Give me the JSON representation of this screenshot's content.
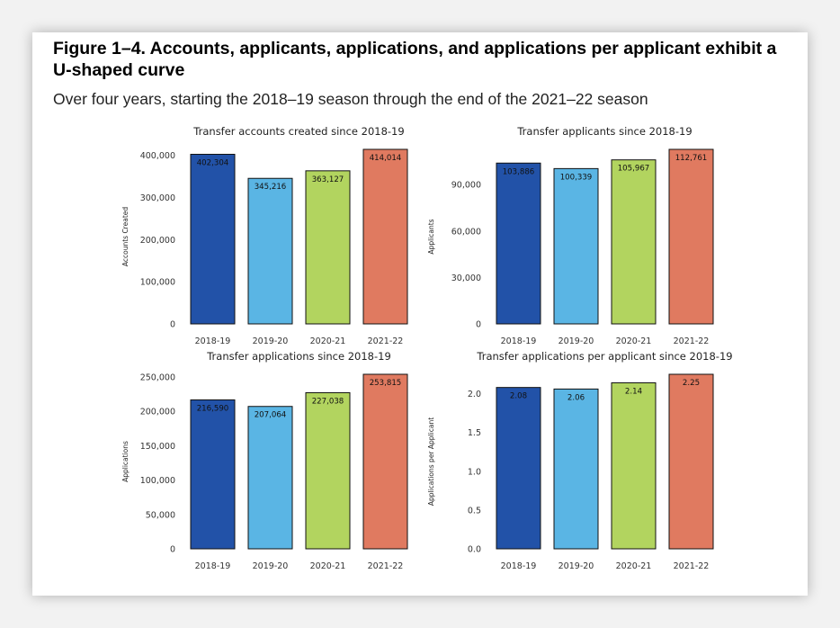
{
  "figure": {
    "title": "Figure 1–4. Accounts, applicants, applications, and applications per applicant exhibit a U-shaped curve",
    "subtitle": "Over four years, starting the 2018–19 season through the end of the 2021–22 season"
  },
  "colors": {
    "bars": [
      "#2252a8",
      "#5ab5e4",
      "#b2d45f",
      "#e07a60"
    ],
    "edge": "#111111"
  },
  "chart_data": [
    {
      "type": "bar",
      "title": "Transfer accounts created since 2018-19",
      "xlabel": "",
      "ylabel": "Accounts Created",
      "categories": [
        "2018-19",
        "2019-20",
        "2020-21",
        "2021-22"
      ],
      "values": [
        402304,
        345216,
        363127,
        414014
      ],
      "value_labels": [
        "402,304",
        "345,216",
        "363,127",
        "414,014"
      ],
      "yticks": [
        0,
        100000,
        200000,
        300000,
        400000
      ],
      "ytick_labels": [
        "0",
        "100,000",
        "200,000",
        "300,000",
        "400,000"
      ],
      "ylim": [
        0,
        414014
      ]
    },
    {
      "type": "bar",
      "title": "Transfer applicants since 2018-19",
      "xlabel": "",
      "ylabel": "Applicants",
      "categories": [
        "2018-19",
        "2019-20",
        "2020-21",
        "2021-22"
      ],
      "values": [
        103886,
        100339,
        105967,
        112761
      ],
      "value_labels": [
        "103,886",
        "100,339",
        "105,967",
        "112,761"
      ],
      "yticks": [
        0,
        30000,
        60000,
        90000
      ],
      "ytick_labels": [
        "0",
        "30,000",
        "60,000",
        "90,000"
      ],
      "ylim": [
        0,
        112761
      ]
    },
    {
      "type": "bar",
      "title": "Transfer applications since 2018-19",
      "xlabel": "",
      "ylabel": "Applications",
      "categories": [
        "2018-19",
        "2019-20",
        "2020-21",
        "2021-22"
      ],
      "values": [
        216590,
        207064,
        227038,
        253815
      ],
      "value_labels": [
        "216,590",
        "207,064",
        "227,038",
        "253,815"
      ],
      "yticks": [
        0,
        50000,
        100000,
        150000,
        200000,
        250000
      ],
      "ytick_labels": [
        "0",
        "50,000",
        "100,000",
        "150,000",
        "200,000",
        "250,000"
      ],
      "ylim": [
        0,
        253815
      ]
    },
    {
      "type": "bar",
      "title": "Transfer applications per applicant since 2018-19",
      "xlabel": "",
      "ylabel": "Applications per Applicant",
      "categories": [
        "2018-19",
        "2019-20",
        "2020-21",
        "2021-22"
      ],
      "values": [
        2.08,
        2.06,
        2.14,
        2.25
      ],
      "value_labels": [
        "2.08",
        "2.06",
        "2.14",
        "2.25"
      ],
      "yticks": [
        0,
        0.5,
        1.0,
        1.5,
        2.0
      ],
      "ytick_labels": [
        "0.0",
        "0.5",
        "1.0",
        "1.5",
        "2.0"
      ],
      "ylim": [
        0,
        2.25
      ]
    }
  ]
}
